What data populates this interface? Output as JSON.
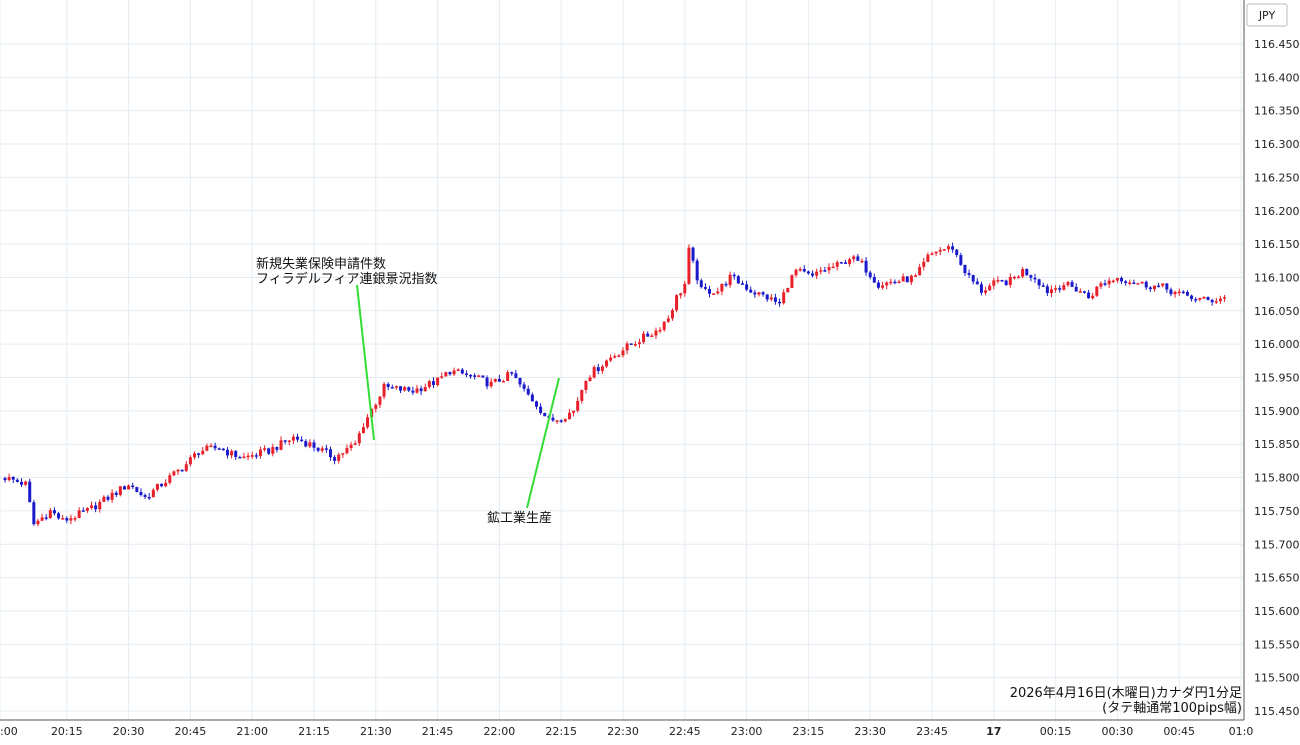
{
  "chart_data": {
    "type": "candlestick",
    "title": "2026年4月16日(木曜日)カナダ円1分足",
    "subtitle": "(タテ軸通常100pips幅)",
    "currency_label": "JPY",
    "ylim": [
      115.43,
      116.5
    ],
    "y_ticks": [
      "115.450",
      "115.500",
      "115.550",
      "115.600",
      "115.650",
      "115.700",
      "115.750",
      "115.800",
      "115.850",
      "115.900",
      "115.950",
      "116.000",
      "116.050",
      "116.100",
      "116.150",
      "116.200",
      "116.250",
      "116.300",
      "116.350",
      "116.400",
      "116.450"
    ],
    "x_ticks": [
      ":00",
      "20:15",
      "20:30",
      "20:45",
      "21:00",
      "21:15",
      "21:30",
      "21:45",
      "22:00",
      "22:15",
      "22:30",
      "22:45",
      "23:00",
      "23:15",
      "23:30",
      "23:45",
      "17",
      "00:15",
      "00:30",
      "00:45",
      "01:0"
    ],
    "grid": true,
    "colors": {
      "up": "#e8202a",
      "down": "#1a1acc",
      "annotation_line": "#33dd33",
      "grid": "#e3ecf3"
    },
    "path": [
      [
        0,
        115.8
      ],
      [
        5,
        115.79
      ],
      [
        7,
        115.73
      ],
      [
        11,
        115.75
      ],
      [
        14,
        115.735
      ],
      [
        20,
        115.75
      ],
      [
        25,
        115.77
      ],
      [
        30,
        115.79
      ],
      [
        34,
        115.77
      ],
      [
        38,
        115.79
      ],
      [
        44,
        115.82
      ],
      [
        47,
        115.84
      ],
      [
        52,
        115.845
      ],
      [
        55,
        115.835
      ],
      [
        58,
        115.83
      ],
      [
        64,
        115.84
      ],
      [
        70,
        115.86
      ],
      [
        74,
        115.85
      ],
      [
        80,
        115.83
      ],
      [
        85,
        115.85
      ],
      [
        87,
        115.88
      ],
      [
        92,
        115.935
      ],
      [
        99,
        115.93
      ],
      [
        105,
        115.945
      ],
      [
        108,
        115.96
      ],
      [
        114,
        115.95
      ],
      [
        118,
        115.94
      ],
      [
        123,
        115.955
      ],
      [
        126,
        115.93
      ],
      [
        129,
        115.91
      ],
      [
        132,
        115.885
      ],
      [
        135,
        115.89
      ],
      [
        138,
        115.9
      ],
      [
        141,
        115.95
      ],
      [
        147,
        115.98
      ],
      [
        152,
        116.0
      ],
      [
        158,
        116.02
      ],
      [
        161,
        116.04
      ],
      [
        163,
        116.07
      ],
      [
        165,
        116.09
      ],
      [
        166,
        116.14
      ],
      [
        167,
        116.12
      ],
      [
        169,
        116.08
      ],
      [
        173,
        116.08
      ],
      [
        176,
        116.1
      ],
      [
        179,
        116.09
      ],
      [
        181,
        116.08
      ],
      [
        185,
        116.07
      ],
      [
        188,
        116.06
      ],
      [
        190,
        116.09
      ],
      [
        192,
        116.11
      ],
      [
        196,
        116.1
      ],
      [
        198,
        116.11
      ],
      [
        203,
        116.12
      ],
      [
        205,
        116.13
      ],
      [
        208,
        116.12
      ],
      [
        212,
        116.09
      ],
      [
        217,
        116.095
      ],
      [
        221,
        116.1
      ],
      [
        224,
        116.13
      ],
      [
        226,
        116.14
      ],
      [
        230,
        116.145
      ],
      [
        232,
        116.12
      ],
      [
        234,
        116.1
      ],
      [
        237,
        116.08
      ],
      [
        240,
        116.09
      ],
      [
        244,
        116.095
      ],
      [
        247,
        116.11
      ],
      [
        250,
        116.1
      ],
      [
        253,
        116.08
      ],
      [
        257,
        116.09
      ],
      [
        261,
        116.08
      ],
      [
        263,
        116.07
      ],
      [
        266,
        116.09
      ],
      [
        270,
        116.1
      ],
      [
        273,
        116.095
      ],
      [
        276,
        116.09
      ],
      [
        281,
        116.085
      ],
      [
        285,
        116.075
      ],
      [
        288,
        116.07
      ],
      [
        292,
        116.065
      ],
      [
        296,
        116.07
      ]
    ],
    "annotations": [
      {
        "lines": [
          "新規失業保険申請件数",
          "フィラデルフィア連銀景況指数"
        ],
        "at_minute": 90
      },
      {
        "lines": [
          "鉱工業生産"
        ],
        "at_minute": 135
      }
    ]
  }
}
